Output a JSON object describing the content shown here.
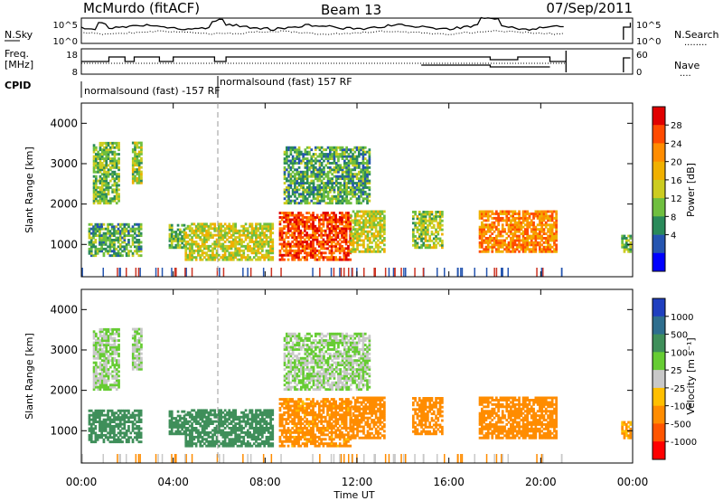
{
  "header": {
    "station": "McMurdo (fitACF)",
    "beam": "Beam 13",
    "date": "07/Sep/2011"
  },
  "noise_panel": {
    "left_label": "N.Sky",
    "left_ticks": [
      "10^5",
      "10^0"
    ],
    "right_ticks": [
      "10^5",
      "10^0"
    ],
    "right_label": "N.Search",
    "legend_dots": "........"
  },
  "freq_panel": {
    "left_label_1": "Freq.",
    "left_label_2": "[MHz]",
    "left_ticks": [
      "18",
      "8"
    ],
    "right_ticks": [
      "60",
      "0"
    ],
    "right_label": "Nave",
    "legend_dots": "...."
  },
  "cpid": {
    "label": "CPID",
    "program_1": "normalsound (fast) -157 RF",
    "program_2": "normalsound (fast) 157 RF"
  },
  "axes": {
    "ylabel": "Slant Range [km]",
    "yticks": [
      "4000",
      "3000",
      "2000",
      "1000"
    ],
    "xlabel": "Time UT",
    "xticks": [
      "00:00",
      "04:00",
      "08:00",
      "12:00",
      "16:00",
      "20:00",
      "00:00"
    ]
  },
  "power_scale": {
    "label": "Power [dB]",
    "ticks": [
      "28",
      "24",
      "20",
      "16",
      "12",
      "8",
      "4"
    ],
    "colors": [
      "#e00000",
      "#ff4a00",
      "#ff8c00",
      "#f0b000",
      "#cccc20",
      "#6fbf3f",
      "#2a8a5a",
      "#2555b0",
      "#0000ff"
    ]
  },
  "velocity_scale": {
    "label": "Velocity [m s⁻¹]",
    "ticks": [
      "1000",
      "500",
      "100",
      "25",
      "-25",
      "-100",
      "-500",
      "-1000"
    ],
    "colors": [
      "#1f3fbf",
      "#2e6e8e",
      "#3f8f5a",
      "#66cc33",
      "#c8c8c8",
      "#ffbf00",
      "#ff8c00",
      "#ff5500",
      "#ff0000"
    ]
  },
  "chart_data": {
    "type": "heatmap",
    "title": "Beam 13",
    "xlabel": "Time UT",
    "ylabel": "Slant Range [km]",
    "xlim": [
      "00:00",
      "24:00"
    ],
    "ylim": [
      200,
      4500
    ],
    "power_colorbar_range_dB": [
      0,
      32
    ],
    "velocity_colorbar_range": [
      -1000,
      1000
    ],
    "regions": [
      {
        "t": [
          0.3,
          2.6
        ],
        "r": [
          700,
          1500
        ],
        "power_dB": 8,
        "velocity": 200
      },
      {
        "t": [
          0.5,
          1.6
        ],
        "r": [
          2000,
          3500
        ],
        "power_dB": 10,
        "velocity": 25
      },
      {
        "t": [
          2.2,
          2.6
        ],
        "r": [
          2500,
          3500
        ],
        "power_dB": 12,
        "velocity": 25
      },
      {
        "t": [
          3.8,
          4.5
        ],
        "r": [
          900,
          1500
        ],
        "power_dB": 10,
        "velocity": 300
      },
      {
        "t": [
          4.5,
          8.3
        ],
        "r": [
          600,
          1500
        ],
        "power_dB": 14,
        "velocity": 300
      },
      {
        "t": [
          8.6,
          11.7
        ],
        "r": [
          600,
          1800
        ],
        "power_dB": 26,
        "velocity": -150
      },
      {
        "t": [
          8.8,
          12.5
        ],
        "r": [
          2000,
          3400
        ],
        "power_dB": 8,
        "velocity": 25
      },
      {
        "t": [
          11.7,
          13.2
        ],
        "r": [
          800,
          1800
        ],
        "power_dB": 14,
        "velocity": -200
      },
      {
        "t": [
          14.4,
          15.7
        ],
        "r": [
          900,
          1800
        ],
        "power_dB": 12,
        "velocity": -200
      },
      {
        "t": [
          17.3,
          20.7
        ],
        "r": [
          800,
          1800
        ],
        "power_dB": 22,
        "velocity": -250
      },
      {
        "t": [
          23.5,
          23.9
        ],
        "r": [
          800,
          1200
        ],
        "power_dB": 10,
        "velocity": -100
      }
    ]
  }
}
